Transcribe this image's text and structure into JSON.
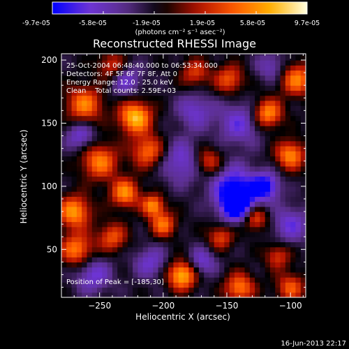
{
  "colors": {
    "background": "#000000",
    "text": "#ffffff",
    "colormap": [
      "#0000ff",
      "#6e34d6",
      "#5a2f8a",
      "#000000",
      "#b11100",
      "#ff5a00",
      "#ffb000",
      "#ffffe0"
    ]
  },
  "colorbar": {
    "tick_labels": [
      "-9.7e-05",
      "-5.8e-05",
      "-1.9e-05",
      "1.9e-05",
      "5.8e-05",
      "9.7e-05"
    ],
    "units": "(photons cm⁻² s⁻¹ asec⁻²)"
  },
  "chart_data": {
    "type": "heatmap",
    "title": "Reconstructed RHESSI Image",
    "xlabel": "Heliocentric X (arcsec)",
    "ylabel": "Heliocentric Y (arcsec)",
    "xlim": [
      -280,
      -88
    ],
    "ylim": [
      12,
      205
    ],
    "x_ticks": [
      -250,
      -200,
      -150,
      -100
    ],
    "y_ticks": [
      50,
      100,
      150,
      200
    ],
    "value_range": [
      -9.7e-05,
      9.7e-05
    ],
    "annotations": [
      "25-Oct-2004 06:48:40.000 to 06:53:34.000",
      "Detectors: 4F 5F 6F 7F 8F, Att 0",
      "Energy Range: 12.0 - 25.0 keV",
      "Clean    Total counts: 2.59E+03"
    ],
    "peak_label": "Position of Peak = [-185,30]",
    "peak": {
      "x": -185,
      "y": 30
    },
    "blobs": [
      {
        "x": -222,
        "y": 155,
        "v": 1.0,
        "s": 9
      },
      {
        "x": -185,
        "y": 30,
        "v": 1.0,
        "s": 8
      },
      {
        "x": -262,
        "y": 165,
        "v": 0.75,
        "s": 10
      },
      {
        "x": -250,
        "y": 120,
        "v": 0.75,
        "s": 10
      },
      {
        "x": -270,
        "y": 80,
        "v": 0.85,
        "s": 9
      },
      {
        "x": -268,
        "y": 50,
        "v": 0.75,
        "s": 9
      },
      {
        "x": -230,
        "y": 95,
        "v": 0.8,
        "s": 8
      },
      {
        "x": -240,
        "y": 60,
        "v": 0.6,
        "s": 8
      },
      {
        "x": -200,
        "y": 70,
        "v": 0.7,
        "s": 7
      },
      {
        "x": -208,
        "y": 85,
        "v": 0.8,
        "s": 6
      },
      {
        "x": -212,
        "y": 128,
        "v": 0.7,
        "s": 9
      },
      {
        "x": -165,
        "y": 120,
        "v": 0.6,
        "s": 8
      },
      {
        "x": -148,
        "y": 185,
        "v": 0.6,
        "s": 8
      },
      {
        "x": -118,
        "y": 158,
        "v": 0.85,
        "s": 8
      },
      {
        "x": -95,
        "y": 185,
        "v": 0.75,
        "s": 9
      },
      {
        "x": -100,
        "y": 125,
        "v": 0.8,
        "s": 8
      },
      {
        "x": -155,
        "y": 60,
        "v": 0.55,
        "s": 7
      },
      {
        "x": -128,
        "y": 75,
        "v": 0.65,
        "s": 7
      },
      {
        "x": -140,
        "y": 20,
        "v": 0.75,
        "s": 8
      },
      {
        "x": -100,
        "y": 20,
        "v": 0.6,
        "s": 8
      },
      {
        "x": -110,
        "y": 45,
        "v": 0.5,
        "s": 7
      },
      {
        "x": -175,
        "y": 190,
        "v": 0.5,
        "s": 8
      },
      {
        "x": -240,
        "y": 195,
        "v": 0.55,
        "s": 8
      },
      {
        "x": -185,
        "y": 120,
        "v": -0.5,
        "s": 12
      },
      {
        "x": -145,
        "y": 100,
        "v": -0.7,
        "s": 12
      },
      {
        "x": -142,
        "y": 85,
        "v": -1.0,
        "s": 9
      },
      {
        "x": -120,
        "y": 100,
        "v": -0.8,
        "s": 8
      },
      {
        "x": -140,
        "y": 150,
        "v": -0.5,
        "s": 12
      },
      {
        "x": -175,
        "y": 160,
        "v": -0.45,
        "s": 10
      },
      {
        "x": -265,
        "y": 140,
        "v": -0.5,
        "s": 8
      },
      {
        "x": -255,
        "y": 30,
        "v": -0.5,
        "s": 10
      },
      {
        "x": -210,
        "y": 40,
        "v": -0.45,
        "s": 9
      },
      {
        "x": -170,
        "y": 40,
        "v": -0.5,
        "s": 8
      },
      {
        "x": -100,
        "y": 70,
        "v": -0.5,
        "s": 10
      },
      {
        "x": -230,
        "y": 185,
        "v": -0.5,
        "s": 9
      },
      {
        "x": -115,
        "y": 195,
        "v": -0.4,
        "s": 8
      }
    ]
  },
  "footer": {
    "timestamp": "16-Jun-2013 22:17"
  }
}
